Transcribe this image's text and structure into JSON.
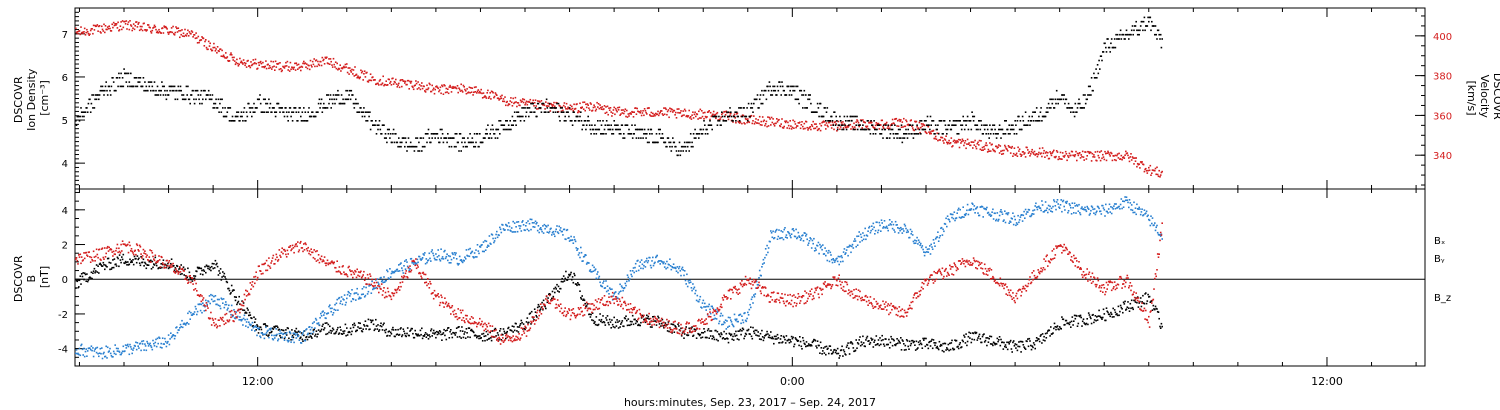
{
  "xaxis": {
    "title": "hours:minutes, Sep. 23, 2017 – Sep. 24, 2017",
    "tick_labels": [
      "12:00",
      "0:00",
      "12:00"
    ],
    "tick_hours": [
      12,
      24,
      36
    ],
    "range_hours": [
      7.9,
      38.2
    ]
  },
  "chart_data": [
    {
      "type": "scatter",
      "panel": "plasma",
      "ylabel_left": [
        "DSCOVR",
        "Ion Density",
        "[cm⁻³]"
      ],
      "ylabel_right": [
        "DSCOVR",
        "Velocity",
        "[km/s]"
      ],
      "ylim_left": [
        3.4,
        7.6
      ],
      "ylim_right": [
        323,
        414
      ],
      "yticks_left": [
        4,
        5,
        6,
        7
      ],
      "yticks_right": [
        340,
        360,
        380,
        400
      ],
      "colors": {
        "density": "#000000",
        "velocity": "#d41e1e"
      },
      "series": [
        {
          "axis": "left",
          "color": "#000000",
          "x": [
            7.9,
            8.5,
            9,
            9.5,
            10,
            10.5,
            11,
            11.5,
            12,
            12.5,
            13,
            13.5,
            14,
            14.5,
            15,
            15.5,
            16,
            16.5,
            17,
            17.5,
            18,
            18.5,
            19,
            19.5,
            20,
            20.5,
            21,
            21.5,
            22,
            22.5,
            23,
            23.5,
            24,
            24.5,
            25,
            25.5,
            26,
            26.5,
            27,
            27.5,
            28,
            28.5,
            29,
            29.5,
            30,
            30.3,
            30.6,
            31,
            31.5,
            32,
            32.3
          ],
          "y": [
            5.0,
            5.7,
            6.0,
            5.8,
            5.7,
            5.6,
            5.5,
            5.0,
            5.4,
            5.2,
            5.1,
            5.4,
            5.6,
            5.0,
            4.6,
            4.4,
            4.7,
            4.5,
            4.6,
            4.9,
            5.2,
            5.3,
            5.1,
            4.9,
            4.8,
            4.7,
            4.6,
            4.3,
            4.8,
            5.1,
            5.2,
            5.8,
            5.7,
            5.3,
            5.0,
            4.9,
            4.8,
            4.7,
            4.9,
            4.8,
            5.0,
            4.7,
            4.9,
            5.1,
            5.6,
            5.2,
            5.5,
            6.7,
            7.0,
            7.3,
            6.8
          ]
        },
        {
          "axis": "right",
          "color": "#d41e1e",
          "x": [
            7.9,
            8.5,
            9,
            9.5,
            10,
            10.5,
            11,
            11.5,
            12,
            12.5,
            13,
            13.5,
            14,
            14.5,
            15,
            15.5,
            16,
            16.5,
            17,
            17.5,
            18,
            18.5,
            19,
            19.5,
            20,
            20.5,
            21,
            21.5,
            22,
            22.5,
            23,
            23.5,
            24,
            24.5,
            25,
            25.5,
            26,
            26.5,
            27,
            27.5,
            28,
            28.5,
            29,
            29.5,
            30,
            30.5,
            31,
            31.5,
            32,
            32.3
          ],
          "y": [
            402,
            404,
            406,
            404,
            403,
            401,
            394,
            388,
            386,
            385,
            385,
            388,
            384,
            379,
            377,
            376,
            373,
            374,
            372,
            368,
            366,
            365,
            364,
            365,
            362,
            362,
            362,
            361,
            361,
            360,
            358,
            357,
            356,
            355,
            355,
            356,
            356,
            357,
            353,
            347,
            346,
            344,
            342,
            342,
            340,
            340,
            340,
            340,
            333,
            331
          ]
        }
      ]
    },
    {
      "type": "scatter",
      "panel": "magnetic_field",
      "ylabel_left": [
        "DSCOVR",
        "B",
        "[nT]"
      ],
      "ylim": [
        -5.0,
        5.2
      ],
      "yticks": [
        -4,
        -2,
        0,
        2,
        4
      ],
      "zero_line": true,
      "legend": [
        "Bₓ",
        "Bᵧ",
        "B_z"
      ],
      "legend_position": "right",
      "series": [
        {
          "name": "Bₓ",
          "color": "#000000",
          "x": [
            7.9,
            8.5,
            9,
            9.5,
            10,
            10.5,
            11,
            11.5,
            12,
            12.5,
            13,
            13.5,
            14,
            14.5,
            15,
            15.5,
            16,
            16.5,
            17,
            17.5,
            18,
            18.5,
            19,
            19.5,
            20,
            20.5,
            21,
            21.5,
            22,
            22.5,
            23,
            23.5,
            24,
            24.5,
            25,
            25.5,
            26,
            26.5,
            27,
            27.5,
            28,
            28.5,
            29,
            29.5,
            30,
            30.5,
            31,
            31.5,
            32,
            32.3
          ],
          "y": [
            -0.2,
            0.8,
            1.2,
            1.0,
            1.0,
            0.2,
            1.0,
            -1.0,
            -2.8,
            -3.0,
            -3.2,
            -2.8,
            -2.9,
            -2.5,
            -3.0,
            -3.0,
            -3.2,
            -3.0,
            -3.2,
            -3.1,
            -2.5,
            -1.2,
            0.5,
            -2.2,
            -2.5,
            -2.3,
            -2.4,
            -3.0,
            -3.1,
            -3.3,
            -3.0,
            -3.3,
            -3.5,
            -3.8,
            -4.3,
            -3.6,
            -3.5,
            -3.7,
            -3.7,
            -3.9,
            -3.3,
            -3.5,
            -3.9,
            -3.6,
            -2.5,
            -2.3,
            -2.0,
            -1.5,
            -1.0,
            -2.8
          ]
        },
        {
          "name": "Bᵧ",
          "color": "#2a80d0",
          "x": [
            7.9,
            8.5,
            9,
            9.5,
            10,
            10.5,
            11,
            11.5,
            12,
            12.5,
            13,
            13.5,
            14,
            14.5,
            15,
            15.5,
            16,
            16.5,
            17,
            17.5,
            18,
            18.5,
            19,
            19.5,
            20,
            20.5,
            21,
            21.5,
            22,
            22.5,
            23,
            23.5,
            24,
            24.5,
            25,
            25.5,
            26,
            26.5,
            27,
            27.5,
            28,
            28.5,
            29,
            29.5,
            30,
            30.5,
            31,
            31.5,
            32,
            32.3
          ],
          "y": [
            -4.0,
            -4.2,
            -4.0,
            -3.8,
            -3.5,
            -2.0,
            -1.0,
            -2.0,
            -3.0,
            -3.2,
            -3.3,
            -2.0,
            -1.0,
            -0.5,
            0.5,
            1.0,
            1.5,
            1.2,
            1.8,
            3.0,
            3.2,
            3.0,
            2.5,
            0.5,
            -1.0,
            0.8,
            1.2,
            0.5,
            -1.5,
            -2.5,
            -2.0,
            2.5,
            2.8,
            2.0,
            1.0,
            2.5,
            3.2,
            3.0,
            1.5,
            3.5,
            4.2,
            3.8,
            3.5,
            4.2,
            4.3,
            4.0,
            4.0,
            4.5,
            3.5,
            2.5
          ]
        },
        {
          "name": "B_z",
          "color": "#d41e1e",
          "x": [
            7.9,
            8.5,
            9,
            9.5,
            10,
            10.5,
            11,
            11.5,
            12,
            12.5,
            13,
            13.5,
            14,
            14.5,
            15,
            15.5,
            16,
            16.5,
            17,
            17.5,
            18,
            18.5,
            19,
            19.5,
            20,
            20.5,
            21,
            21.5,
            22,
            22.5,
            23,
            23.5,
            24,
            24.5,
            25,
            25.5,
            26,
            26.5,
            27,
            27.5,
            28,
            28.5,
            29,
            29.5,
            30,
            30.5,
            31,
            31.5,
            32,
            32.3
          ],
          "y": [
            1.2,
            1.5,
            2.0,
            1.5,
            0.8,
            0.0,
            -2.5,
            -2.0,
            0.5,
            1.5,
            2.0,
            1.0,
            0.5,
            0.0,
            -1.0,
            1.0,
            -1.0,
            -2.0,
            -2.5,
            -3.5,
            -3.0,
            -1.0,
            -2.0,
            -1.5,
            -1.0,
            -2.0,
            -2.5,
            -2.8,
            -2.5,
            -1.0,
            0.0,
            -1.0,
            -1.2,
            -0.8,
            0.0,
            -1.0,
            -1.5,
            -2.0,
            0.0,
            0.5,
            1.2,
            0.2,
            -1.0,
            0.5,
            2.0,
            0.5,
            -0.5,
            0.0,
            -2.5,
            3.5
          ]
        }
      ]
    }
  ]
}
